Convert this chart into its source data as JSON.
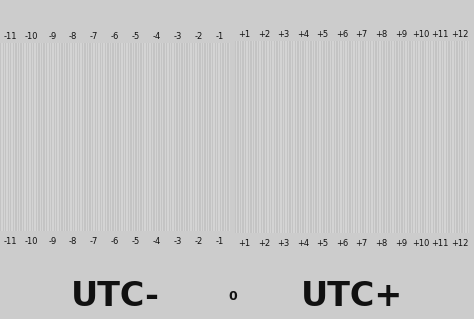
{
  "title_left": "UTC-",
  "title_right": "UTC+",
  "title_center": "0",
  "bg_color_left": "#cccccc",
  "bg_color_right": "#ebebeb",
  "stripe_colors": [
    "#c4c4c4",
    "#d4d4d4"
  ],
  "land_color_light": "#ffb347",
  "land_color_dark": "#e06000",
  "border_color": "#ffffff",
  "divider_color": "#222222",
  "text_color": "#111111",
  "tick_labels_neg": [
    "-11",
    "-10",
    "-9",
    "-8",
    "-7",
    "-6",
    "-5",
    "-4",
    "-3",
    "-2",
    "-1"
  ],
  "tick_labels_pos": [
    "+1",
    "+2",
    "+3",
    "+4",
    "+5",
    "+6",
    "+7",
    "+8",
    "+9",
    "+10",
    "+11",
    "+12"
  ],
  "figsize": [
    4.74,
    3.19
  ],
  "dpi": 100
}
